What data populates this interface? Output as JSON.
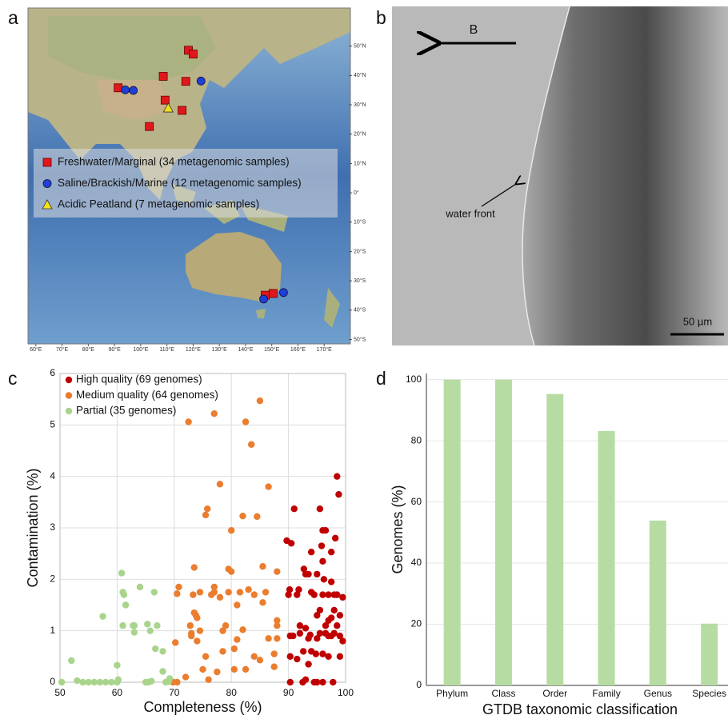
{
  "panel_labels": [
    "a",
    "b",
    "c",
    "d"
  ],
  "map": {
    "lonlim": [
      57,
      180
    ],
    "latlim": [
      63,
      -51.5
    ],
    "lon_ticks": [
      {
        "value": 60,
        "label": "60°E"
      },
      {
        "value": 70,
        "label": "70°E"
      },
      {
        "value": 80,
        "label": "80°E"
      },
      {
        "value": 90,
        "label": "90°E"
      },
      {
        "value": 100,
        "label": "100°E"
      },
      {
        "value": 110,
        "label": "110°E"
      },
      {
        "value": 120,
        "label": "120°E"
      },
      {
        "value": 130,
        "label": "130°E"
      },
      {
        "value": 140,
        "label": "140°E"
      },
      {
        "value": 150,
        "label": "150°E"
      },
      {
        "value": 160,
        "label": "160°E"
      },
      {
        "value": 170,
        "label": "170°E"
      }
    ],
    "lat_ticks": [
      {
        "value": 50,
        "label": "50°N"
      },
      {
        "value": 40,
        "label": "40°N"
      },
      {
        "value": 30,
        "label": "30°N"
      },
      {
        "value": 20,
        "label": "20°N"
      },
      {
        "value": 10,
        "label": "10°N"
      },
      {
        "value": 0,
        "label": "0°"
      },
      {
        "value": -10,
        "label": "10°S"
      },
      {
        "value": -20,
        "label": "20°S"
      },
      {
        "value": -30,
        "label": "30°S"
      },
      {
        "value": -40,
        "label": "40°S"
      },
      {
        "value": -50,
        "label": "50°S"
      }
    ],
    "series": [
      {
        "name": "Freshwater/Marginal (34 metagenomic samples)",
        "marker": "square",
        "color": "#e0181b",
        "lon": [
          118.2,
          120,
          108.6,
          117.2,
          91.4,
          109.3,
          115.8,
          103.3,
          147.5,
          150.5
        ],
        "lat": [
          48.6,
          47.3,
          39.7,
          38,
          35.8,
          31.6,
          28.1,
          22.6,
          -34.9,
          -34.3
        ]
      },
      {
        "name": "Saline/Brackish/Marine (12 metagenomic samples)",
        "marker": "circle",
        "color": "#1f3fd6",
        "lon": [
          94.1,
          97.2,
          123,
          154.5,
          146.9
        ],
        "lat": [
          35.1,
          34.9,
          38.1,
          -34,
          -36.2
        ]
      },
      {
        "name": "Acidic Peatland (7 metagenomic samples)",
        "marker": "triangle",
        "color": "#f5e21a",
        "lon": [
          110.5
        ],
        "lat": [
          28.9
        ]
      }
    ]
  },
  "micrograph": {
    "arrow_label": "B",
    "annotation": "water front",
    "scale_bar": "50 µm"
  },
  "chart_data": [
    {
      "type": "scatter",
      "xlabel": "Completeness (%)",
      "ylabel": "Contamination (%)",
      "xlim": [
        50,
        100
      ],
      "ylim": [
        0,
        6
      ],
      "xticks": [
        50,
        60,
        70,
        80,
        90,
        100
      ],
      "yticks": [
        0,
        1,
        2,
        3,
        4,
        5,
        6
      ],
      "grid": true,
      "legend": "upper left",
      "series": [
        {
          "name": "High quality (69 genomes)",
          "color": "#c00000",
          "x": [
            89.7,
            90,
            90.2,
            90.3,
            90.3,
            90.3,
            90.5,
            90.8,
            91,
            91.5,
            91.5,
            92,
            92,
            92.5,
            92.7,
            93,
            93,
            93.5,
            93.5,
            93.8,
            94,
            94,
            94,
            94.5,
            94.5,
            95,
            95,
            95,
            95.5,
            95.5,
            95.5,
            95.8,
            96,
            96,
            96,
            96,
            96,
            96.5,
            96.5,
            96.5,
            97,
            97,
            97,
            97.5,
            97.5,
            97.5,
            97.5,
            97.8,
            98,
            98,
            98,
            98.2,
            98.5,
            98.5,
            98.5,
            98.8,
            99,
            99,
            99.5,
            99.5,
            95,
            93,
            97,
            91.8,
            96.2,
            99,
            94.8,
            92.6,
            93.5
          ],
          "values": [
            2.75,
            1.7,
            1.8,
            0.9,
            0.5,
            0,
            2.7,
            0.9,
            3.37,
            1.7,
            0.45,
            0.95,
            1.1,
            0,
            2.2,
            2.1,
            0.05,
            2.1,
            0.35,
            0.92,
            2.53,
            1.75,
            0.6,
            0,
            1.7,
            1.3,
            0.85,
            0,
            3.37,
            1.4,
            0.95,
            2.65,
            2.95,
            2.35,
            1.7,
            0.55,
            0,
            2.95,
            1.1,
            0.95,
            0.9,
            1.7,
            0.5,
            1.95,
            2.53,
            1.25,
            0.9,
            0,
            1.7,
            1.4,
            0.95,
            2.8,
            4,
            1.7,
            1.1,
            3.65,
            0.5,
            0.9,
            1.65,
            0.8,
            2.1,
            1.05,
            1.2,
            1.8,
            2,
            1.3,
            0.55,
            0.6,
            0.85
          ]
        },
        {
          "name": "Medium quality (64 genomes)",
          "color": "#ea7d2e",
          "x": [
            69.8,
            70.2,
            70.5,
            70.5,
            70.8,
            72.5,
            72.8,
            73,
            73,
            73.3,
            73.5,
            73.5,
            73.8,
            74,
            74.5,
            74.5,
            75,
            75.5,
            75.8,
            75.5,
            76,
            76.5,
            77,
            77,
            77,
            77.5,
            78,
            78,
            78.5,
            79,
            79.5,
            79.5,
            80,
            80,
            80.5,
            80.5,
            81,
            81,
            81.5,
            82,
            82,
            82.5,
            82.5,
            83,
            83.5,
            84,
            84,
            84.5,
            85,
            85,
            85.5,
            85.5,
            86,
            86.5,
            87.5,
            88,
            88,
            88,
            88,
            87.5,
            86.5,
            78.5,
            74,
            72
          ],
          "values": [
            0,
            0.77,
            0,
            1.72,
            1.85,
            5.06,
            1.1,
            0.9,
            0.95,
            1.7,
            1.35,
            2.23,
            1.3,
            0.8,
            1,
            1.75,
            0.25,
            3.25,
            3.37,
            0.5,
            0.05,
            1.7,
            1.85,
            1.75,
            5.22,
            0.2,
            3.85,
            1.65,
            1,
            1.1,
            1.75,
            2.2,
            2.95,
            2.15,
            0.65,
            0.25,
            1.5,
            0.83,
            1.75,
            1.02,
            3.23,
            0.25,
            5.06,
            1.8,
            4.62,
            1.7,
            0.5,
            3.22,
            0.43,
            5.47,
            2.25,
            1.55,
            1.75,
            3.8,
            0.3,
            0.85,
            1.2,
            2.15,
            1.1,
            0.55,
            0.85,
            0.6,
            1.25,
            0.1
          ]
        },
        {
          "name": "Partial (35 genomes)",
          "color": "#a9d48c",
          "x": [
            50.3,
            52,
            53,
            54,
            55,
            56,
            57,
            57.5,
            59,
            60,
            60,
            60.2,
            60.8,
            61,
            61.2,
            61.5,
            61,
            62.8,
            63,
            64,
            65,
            65.5,
            65.3,
            65.8,
            66.5,
            66.7,
            67,
            68,
            68,
            68.5,
            69,
            69.2,
            66,
            58,
            63
          ],
          "values": [
            0,
            0.42,
            0.03,
            0,
            0,
            0,
            0,
            1.28,
            0,
            0,
            0.33,
            0.05,
            2.12,
            1.75,
            1.7,
            1.5,
            1.1,
            1.1,
            0.97,
            1.85,
            0,
            0,
            1.13,
            1,
            1.75,
            0.65,
            1.1,
            0.6,
            0.21,
            0,
            0.01,
            0.07,
            0.02,
            0,
            1.1
          ]
        }
      ]
    },
    {
      "type": "bar",
      "xlabel": "GTDB taxonomic classification",
      "ylabel": "Genomes (%)",
      "categories": [
        "Phylum",
        "Class",
        "Order",
        "Family",
        "Genus",
        "Species"
      ],
      "values": [
        100,
        100,
        95.3,
        83.2,
        53.9,
        20.2
      ],
      "color": "#b7dca3",
      "ylim": [
        0,
        102
      ],
      "yticks": [
        0,
        20,
        40,
        60,
        80,
        100
      ],
      "grid": true
    }
  ]
}
